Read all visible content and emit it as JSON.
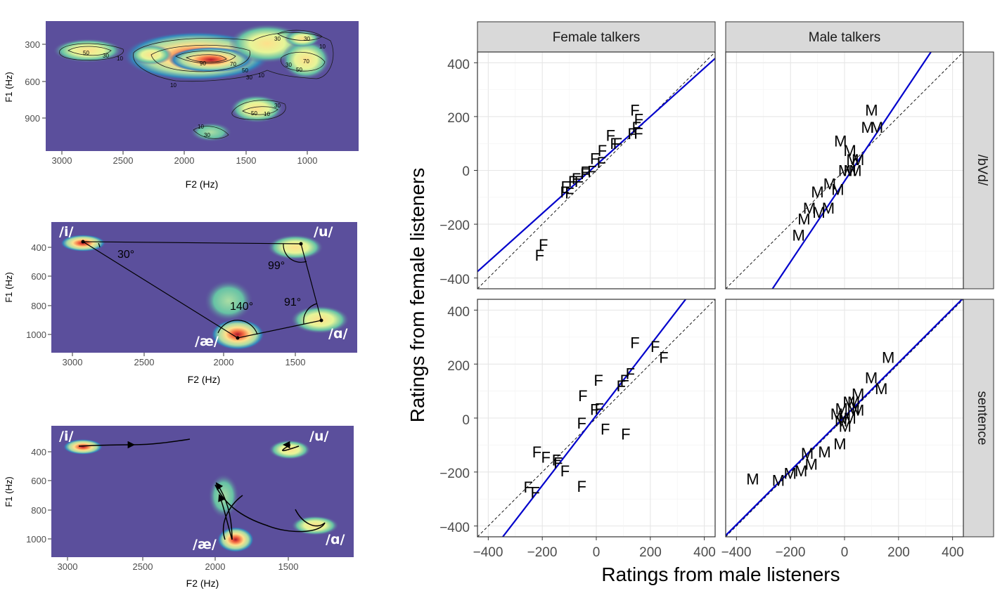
{
  "colors": {
    "heat_bg": "#5b4f9c",
    "fit_line": "#0000cc",
    "identity_line": "#000000",
    "strip_fill": "#d9d9d9"
  },
  "chart_data": [
    {
      "type": "heatmap",
      "xlabel": "F2 (Hz)",
      "ylabel": "F1 (Hz)",
      "x_ticks": [
        "3000",
        "2500",
        "2000",
        "1500",
        "1000"
      ],
      "y_ticks": [
        "300",
        "600",
        "900"
      ],
      "contour_labels": [
        "50",
        "30",
        "10",
        "90",
        "70",
        "50",
        "30",
        "10",
        "10",
        "30",
        "30",
        "10",
        "70",
        "50",
        "30",
        "50",
        "10",
        "30",
        "10",
        "30"
      ],
      "hotspots": [
        {
          "f2": 2700,
          "f1": 330,
          "peak": 0.6
        },
        {
          "f2": 1900,
          "f1": 400,
          "peak": 1.0
        },
        {
          "f2": 1300,
          "f1": 250,
          "peak": 0.45
        },
        {
          "f2": 1000,
          "f1": 420,
          "peak": 0.6
        },
        {
          "f2": 1450,
          "f1": 850,
          "peak": 0.5
        },
        {
          "f2": 1800,
          "f1": 1050,
          "peak": 0.4
        }
      ]
    },
    {
      "type": "heatmap",
      "xlabel": "F2 (Hz)",
      "ylabel": "F1 (Hz)",
      "x_ticks": [
        "3000",
        "2500",
        "2000",
        "1500"
      ],
      "y_ticks": [
        "400",
        "600",
        "800",
        "1000"
      ],
      "vowels": [
        {
          "label": "/i/",
          "f2": 2900,
          "f1": 360
        },
        {
          "label": "/u/",
          "f2": 1430,
          "f1": 370
        },
        {
          "label": "/æ/",
          "f2": 1850,
          "f1": 1030
        },
        {
          "label": "/ɑ/",
          "f2": 1300,
          "f1": 900
        }
      ],
      "angles": [
        "30°",
        "99°",
        "140°",
        "91°"
      ]
    },
    {
      "type": "heatmap",
      "xlabel": "F2 (Hz)",
      "ylabel": "F1 (Hz)",
      "x_ticks": [
        "3000",
        "2500",
        "2000",
        "1500"
      ],
      "y_ticks": [
        "400",
        "600",
        "800",
        "1000"
      ],
      "vowels": [
        {
          "label": "/i/",
          "f2": 2900,
          "f1": 360
        },
        {
          "label": "/u/",
          "f2": 1430,
          "f1": 370
        },
        {
          "label": "/æ/",
          "f2": 1850,
          "f1": 1030
        },
        {
          "label": "/ɑ/",
          "f2": 1300,
          "f1": 900
        }
      ]
    },
    {
      "type": "scatter",
      "xlabel": "Ratings from male listeners",
      "ylabel": "Ratings from female listeners",
      "xlim": [
        -440,
        440
      ],
      "ylim": [
        -440,
        440
      ],
      "x_ticks": [
        "−400",
        "−200",
        "0",
        "200",
        "400"
      ],
      "y_ticks": [
        "400",
        "200",
        "0",
        "−200",
        "−400"
      ],
      "col_strips": [
        "Female talkers",
        "Male talkers"
      ],
      "row_strips": [
        "/bVd/",
        "sentence"
      ],
      "panels": [
        {
          "talker": "F",
          "row": "/bVd/",
          "fit": {
            "slope": 0.9,
            "intercept": 20
          },
          "points": [
            [
              143,
              225
            ],
            [
              157,
              190
            ],
            [
              149,
              160
            ],
            [
              133,
              137
            ],
            [
              156,
              138
            ],
            [
              53,
              130
            ],
            [
              68,
              100
            ],
            [
              79,
              100
            ],
            [
              22,
              75
            ],
            [
              -6,
              44
            ],
            [
              19,
              30
            ],
            [
              -16,
              -3
            ],
            [
              -41,
              -5
            ],
            [
              -42,
              -12
            ],
            [
              -74,
              -30
            ],
            [
              -87,
              -41
            ],
            [
              -64,
              -41
            ],
            [
              -114,
              -60
            ],
            [
              -117,
              -80
            ],
            [
              -99,
              -84
            ],
            [
              -196,
              -275
            ],
            [
              -210,
              -315
            ]
          ]
        },
        {
          "talker": "M",
          "row": "/bVd/",
          "fit": {
            "slope": 1.5,
            "intercept": -40
          },
          "points": [
            [
              100,
              225
            ],
            [
              85,
              160
            ],
            [
              120,
              160
            ],
            [
              -15,
              110
            ],
            [
              20,
              75
            ],
            [
              30,
              40
            ],
            [
              50,
              40
            ],
            [
              -55,
              -50
            ],
            [
              -100,
              -80
            ],
            [
              -25,
              -70
            ],
            [
              0,
              0
            ],
            [
              20,
              0
            ],
            [
              -130,
              -140
            ],
            [
              -60,
              -140
            ],
            [
              -150,
              -180
            ],
            [
              -170,
              -240
            ],
            [
              -95,
              -155
            ],
            [
              40,
              0
            ]
          ]
        },
        {
          "talker": "F",
          "row": "sentence",
          "fit": {
            "slope": 1.3,
            "intercept": 10
          },
          "points": [
            [
              143,
              280
            ],
            [
              218,
              265
            ],
            [
              250,
              225
            ],
            [
              126,
              165
            ],
            [
              105,
              140
            ],
            [
              92,
              120
            ],
            [
              8,
              140
            ],
            [
              -50,
              83
            ],
            [
              -6,
              33
            ],
            [
              11,
              35
            ],
            [
              -54,
              -18
            ],
            [
              33,
              -40
            ],
            [
              109,
              -58
            ],
            [
              -220,
              -125
            ],
            [
              -187,
              -145
            ],
            [
              -147,
              -155
            ],
            [
              -141,
              -165
            ],
            [
              -116,
              -195
            ],
            [
              -252,
              -255
            ],
            [
              -226,
              -275
            ],
            [
              -54,
              -253
            ]
          ]
        },
        {
          "talker": "M",
          "row": "sentence",
          "fit": {
            "slope": 1.0,
            "intercept": 5
          },
          "points": [
            [
              162,
              225
            ],
            [
              99,
              150
            ],
            [
              136,
              110
            ],
            [
              50,
              90
            ],
            [
              34,
              60
            ],
            [
              17,
              60
            ],
            [
              50,
              30
            ],
            [
              33,
              30
            ],
            [
              -11,
              35
            ],
            [
              -29,
              15
            ],
            [
              0,
              0
            ],
            [
              20,
              0
            ],
            [
              -13,
              -10
            ],
            [
              2,
              -30
            ],
            [
              -17,
              -95
            ],
            [
              -74,
              -125
            ],
            [
              -138,
              -130
            ],
            [
              -123,
              -170
            ],
            [
              -161,
              -195
            ],
            [
              -201,
              -205
            ],
            [
              -340,
              -225
            ],
            [
              -245,
              -230
            ]
          ]
        }
      ]
    }
  ]
}
